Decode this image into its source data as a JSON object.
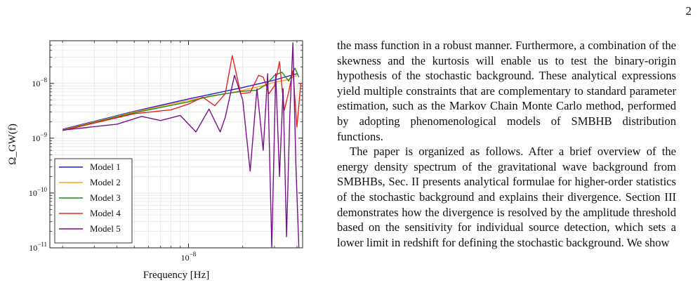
{
  "page_number": "2",
  "paragraphs": [
    "the mass function in a robust manner. Furthermore, a combination of the skewness and the kurtosis will enable us to test the binary-origin hypothesis of the stochastic background. These analytical expressions yield multiple constraints that are complementary to standard parameter estimation, such as the Markov Chain Monte Carlo method, performed by adopting phenomenological models of SMBHB distribution functions.",
    "The paper is organized as follows. After a brief overview of the energy density spectrum of the gravitational wave background from SMBHBs, Sec. II presents analytical formulae for higher-order statistics of the stochastic background and explains their divergence. Section III demonstrates how the divergence is resolved by the amplitude threshold based on the sensitivity for individual source detection, which sets a lower limit in redshift for defining the stochastic background. We show"
  ],
  "chart_data": {
    "type": "line",
    "xlabel": "Frequency [Hz]",
    "ylabel": "Ω_GW(f)",
    "x_scale": "log",
    "y_scale": "log",
    "xlim": [
      1.7e-09,
      4.3e-08
    ],
    "ylim": [
      1e-11,
      6e-08
    ],
    "grid": true,
    "legend_position": "lower-left",
    "x_ticks": [
      {
        "value": 1e-08,
        "label": "10^-8"
      }
    ],
    "y_ticks": [
      {
        "value": 1e-11,
        "label": "10^-11"
      },
      {
        "value": 1e-10,
        "label": "10^-10"
      },
      {
        "value": 1e-09,
        "label": "10^-9"
      },
      {
        "value": 1e-08,
        "label": "10^-8"
      }
    ],
    "series": [
      {
        "name": "Model 1",
        "color": "#1f1fcf",
        "x": [
          2e-09,
          5e-09,
          1e-08,
          2e-08,
          3e-08,
          4e-08
        ],
        "y": [
          1.45e-09,
          3.1e-09,
          5.2e-09,
          8.4e-09,
          1.15e-08,
          1.5e-08
        ]
      },
      {
        "name": "Model 2",
        "color": "#ff9f1c",
        "x": [
          2e-09,
          5e-09,
          1e-08,
          1.5e-08,
          2e-08,
          2.5e-08,
          3e-08,
          3.5e-08,
          4e-08
        ],
        "y": [
          1.42e-09,
          3e-09,
          4.9e-09,
          6.2e-09,
          7.5e-09,
          8.8e-09,
          1.05e-08,
          1.15e-08,
          1.4e-08
        ]
      },
      {
        "name": "Model 3",
        "color": "#1a8c1a",
        "x": [
          2e-09,
          5e-09,
          1e-08,
          1.3e-08,
          1.6e-08,
          2e-08,
          2.4e-08,
          2.7e-08,
          3e-08,
          3.3e-08,
          3.6e-08,
          3.9e-08,
          4.1e-08
        ],
        "y": [
          1.4e-09,
          2.9e-09,
          4.6e-09,
          5.8e-09,
          6.5e-09,
          7.2e-09,
          7.5e-09,
          9.5e-09,
          1.4e-08,
          1.6e-08,
          1.1e-08,
          1.9e-08,
          1.3e-08
        ]
      },
      {
        "name": "Model 4",
        "color": "#e8231f",
        "x": [
          2e-09,
          5e-09,
          8e-09,
          1e-08,
          1.2e-08,
          1.4e-08,
          1.6e-08,
          1.75e-08,
          1.95e-08,
          2.2e-08,
          2.45e-08,
          2.6e-08,
          2.8e-08,
          3e-08,
          3.2e-08,
          3.4e-08,
          3.6e-08,
          3.8e-08,
          4e-08,
          4.2e-08
        ],
        "y": [
          1.38e-09,
          2.8e-09,
          3.3e-09,
          4.2e-09,
          5.6e-09,
          3.9e-09,
          6.5e-09,
          3.2e-08,
          6.5e-09,
          6.8e-09,
          1.4e-08,
          1.3e-08,
          6.5e-09,
          9e-09,
          2.5e-08,
          3.2e-09,
          7e-09,
          1.7e-08,
          1.6e-09,
          1e-08
        ]
      },
      {
        "name": "Model 5",
        "color": "#7a0f8c",
        "x": [
          2e-09,
          4e-09,
          5.5e-09,
          7e-09,
          9e-09,
          1.1e-08,
          1.3e-08,
          1.5e-08,
          1.6e-08,
          1.8e-08,
          2e-08,
          2.2e-08,
          2.4e-08,
          2.6e-08,
          2.75e-08,
          2.9e-08,
          3.05e-08,
          3.2e-08,
          3.35e-08,
          3.5e-08,
          3.65e-08,
          3.8e-08,
          3.95e-08,
          4.1e-08
        ],
        "y": [
          1.4e-09,
          1.8e-09,
          2.5e-09,
          2.1e-09,
          2.6e-09,
          1.3e-09,
          3.4e-09,
          1.3e-09,
          2.4e-09,
          1.4e-08,
          5e-09,
          2.5e-10,
          8e-09,
          6e-10,
          1.5e-08,
          1e-11,
          1.5e-08,
          2e-10,
          8e-09,
          1.6e-11,
          2.5e-09,
          5.5e-08,
          3e-10,
          1e-11
        ]
      }
    ]
  }
}
